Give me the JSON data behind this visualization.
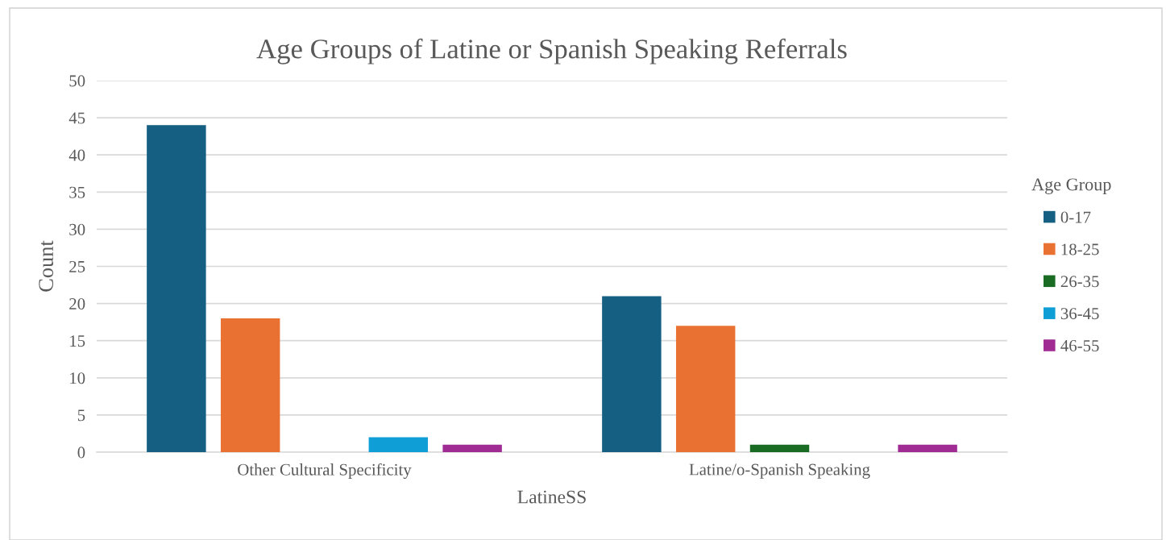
{
  "chart_data": {
    "type": "bar",
    "title": "Age Groups of Latine or Spanish Speaking Referrals",
    "xlabel": "LatineSS",
    "ylabel": "Count",
    "legend_title": "Age Group",
    "categories": [
      "Other Cultural Specificity",
      "Latine/o-Spanish Speaking"
    ],
    "series": [
      {
        "name": "0-17",
        "color": "#155f82",
        "values": [
          44,
          21
        ]
      },
      {
        "name": "18-25",
        "color": "#e97132",
        "values": [
          18,
          17
        ]
      },
      {
        "name": "26-35",
        "color": "#196b24",
        "values": [
          0,
          1
        ]
      },
      {
        "name": "36-45",
        "color": "#0f9ed5",
        "values": [
          2,
          0
        ]
      },
      {
        "name": "46-55",
        "color": "#a02b93",
        "values": [
          1,
          1
        ]
      }
    ],
    "ylim": [
      0,
      50
    ],
    "yticks": [
      0,
      5,
      10,
      15,
      20,
      25,
      30,
      35,
      40,
      45,
      50
    ],
    "grid": "y",
    "legend": "right"
  }
}
